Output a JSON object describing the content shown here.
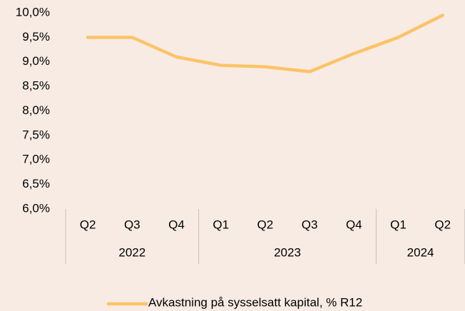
{
  "chart_data": {
    "type": "line",
    "categories": [
      "Q2",
      "Q3",
      "Q4",
      "Q1",
      "Q2",
      "Q3",
      "Q4",
      "Q1",
      "Q2"
    ],
    "category_groups": [
      {
        "name": "2022",
        "size": 3
      },
      {
        "name": "2023",
        "size": 4
      },
      {
        "name": "2024",
        "size": 2
      }
    ],
    "series": [
      {
        "name": "Avkastning på sysselsatt kapital, % R12",
        "color": "#fcc366",
        "values": [
          9.5,
          9.5,
          9.1,
          8.93,
          8.9,
          8.8,
          9.17,
          9.5,
          9.95
        ]
      }
    ],
    "ylim": [
      6,
      10
    ],
    "yticks": [
      {
        "value": 6,
        "label": "6,0%"
      },
      {
        "value": 6.5,
        "label": "6,5%"
      },
      {
        "value": 7,
        "label": "7,0%"
      },
      {
        "value": 7.5,
        "label": "7,5%"
      },
      {
        "value": 8,
        "label": "8,0%"
      },
      {
        "value": 8.5,
        "label": "8,5%"
      },
      {
        "value": 9,
        "label": "9,0%"
      },
      {
        "value": 9.5,
        "label": "9,5%"
      },
      {
        "value": 10,
        "label": "10,0%"
      }
    ],
    "grid": false,
    "legend": "bottom"
  }
}
